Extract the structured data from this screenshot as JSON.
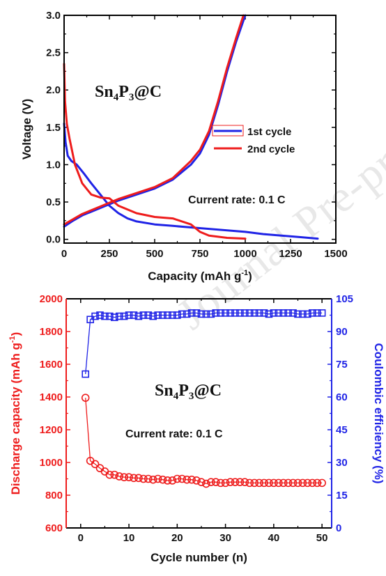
{
  "watermark": "Journal Pre-proof",
  "colors": {
    "red": "#ee1c1c",
    "blue": "#1f23e6",
    "axis": "#000000"
  },
  "chart_data": [
    {
      "type": "line",
      "title": "",
      "xlabel": "Capacity (mAh g",
      "xlabel_sup": "-1",
      "xlabel_end": ")",
      "ylabel": "Voltage (V)",
      "xlim": [
        0,
        1500
      ],
      "ylim": [
        -0.05,
        3.0
      ],
      "xticks": [
        "0",
        "250",
        "500",
        "750",
        "1000",
        "1250",
        "1500"
      ],
      "yticks": [
        "0.0",
        "0.5",
        "1.0",
        "1.5",
        "2.0",
        "2.5",
        "3.0"
      ],
      "material": {
        "main": "Sn",
        "sub1": "4",
        "mid": "P",
        "sub2": "3",
        "end": "@C"
      },
      "annotation": "Current rate: 0.1 C",
      "legend_position": "center-right",
      "series": [
        {
          "name": "1st cycle",
          "role": "discharge",
          "color": "#1f23e6",
          "x": [
            0,
            8,
            20,
            40,
            70,
            110,
            150,
            200,
            250,
            300,
            350,
            400,
            500,
            600,
            700,
            800,
            900,
            1000,
            1100,
            1200,
            1300,
            1400
          ],
          "y": [
            1.55,
            1.3,
            1.12,
            1.05,
            1.0,
            0.88,
            0.75,
            0.6,
            0.45,
            0.35,
            0.28,
            0.24,
            0.2,
            0.18,
            0.16,
            0.14,
            0.12,
            0.1,
            0.07,
            0.05,
            0.03,
            0.01
          ]
        },
        {
          "name": "1st cycle",
          "role": "charge",
          "color": "#1f23e6",
          "x": [
            0,
            50,
            100,
            200,
            300,
            400,
            500,
            600,
            700,
            750,
            800,
            850,
            900,
            950,
            1000
          ],
          "y": [
            0.17,
            0.25,
            0.32,
            0.42,
            0.52,
            0.6,
            0.68,
            0.8,
            1.0,
            1.15,
            1.4,
            1.8,
            2.25,
            2.65,
            3.0
          ]
        },
        {
          "name": "2nd cycle",
          "role": "discharge",
          "color": "#ee1c1c",
          "x": [
            0,
            5,
            15,
            30,
            60,
            100,
            150,
            200,
            250,
            300,
            400,
            500,
            600,
            700,
            750,
            800,
            900,
            1000
          ],
          "y": [
            2.35,
            1.85,
            1.55,
            1.35,
            1.0,
            0.75,
            0.6,
            0.56,
            0.55,
            0.45,
            0.35,
            0.3,
            0.28,
            0.2,
            0.1,
            0.05,
            0.02,
            0.01
          ]
        },
        {
          "name": "2nd cycle",
          "role": "charge",
          "color": "#ee1c1c",
          "x": [
            0,
            50,
            100,
            200,
            300,
            400,
            500,
            600,
            700,
            750,
            800,
            850,
            900,
            950,
            990
          ],
          "y": [
            0.2,
            0.27,
            0.34,
            0.44,
            0.54,
            0.62,
            0.7,
            0.82,
            1.05,
            1.2,
            1.45,
            1.85,
            2.3,
            2.7,
            3.0
          ]
        }
      ]
    },
    {
      "type": "scatter",
      "title": "",
      "xlabel": "Cycle number (n)",
      "ylabel_left": "Discharge capacity (mAh g",
      "ylabel_left_sup": "-1",
      "ylabel_left_end": ")",
      "ylabel_right": "Coulombic efficiency (%)",
      "xlim": [
        -3,
        52
      ],
      "ylim_left": [
        600,
        2000
      ],
      "ylim_right": [
        0,
        105
      ],
      "xticks": [
        "0",
        "10",
        "20",
        "30",
        "40",
        "50"
      ],
      "yticks_left": [
        "600",
        "800",
        "1000",
        "1200",
        "1400",
        "1600",
        "1800",
        "2000"
      ],
      "yticks_right": [
        "0",
        "15",
        "30",
        "45",
        "60",
        "75",
        "90",
        "105"
      ],
      "material": {
        "main": "Sn",
        "sub1": "4",
        "mid": "P",
        "sub2": "3",
        "end": "@C"
      },
      "annotation": "Current rate: 0.1 C",
      "series": [
        {
          "name": "Discharge capacity",
          "axis": "left",
          "marker": "circle",
          "color": "#ee1c1c",
          "x": [
            1,
            2,
            3,
            4,
            5,
            6,
            7,
            8,
            9,
            10,
            11,
            12,
            13,
            14,
            15,
            16,
            17,
            18,
            19,
            20,
            21,
            22,
            23,
            24,
            25,
            26,
            27,
            28,
            29,
            30,
            31,
            32,
            33,
            34,
            35,
            36,
            37,
            38,
            39,
            40,
            41,
            42,
            43,
            44,
            45,
            46,
            47,
            48,
            49,
            50
          ],
          "values": [
            1395,
            1010,
            990,
            965,
            945,
            925,
            925,
            915,
            910,
            910,
            905,
            905,
            900,
            900,
            895,
            900,
            895,
            890,
            890,
            900,
            900,
            895,
            895,
            890,
            880,
            870,
            880,
            880,
            875,
            875,
            880,
            880,
            880,
            880,
            875,
            875,
            875,
            875,
            875,
            875,
            875,
            875,
            875,
            875,
            875,
            875,
            875,
            875,
            875,
            875
          ]
        },
        {
          "name": "Coulombic efficiency",
          "axis": "right",
          "marker": "square",
          "color": "#1f23e6",
          "x": [
            1,
            2,
            3,
            4,
            5,
            6,
            7,
            8,
            9,
            10,
            11,
            12,
            13,
            14,
            15,
            16,
            17,
            18,
            19,
            20,
            21,
            22,
            23,
            24,
            25,
            26,
            27,
            28,
            29,
            30,
            31,
            32,
            33,
            34,
            35,
            36,
            37,
            38,
            39,
            40,
            41,
            42,
            43,
            44,
            45,
            46,
            47,
            48,
            49,
            50
          ],
          "values": [
            70.5,
            95.5,
            97,
            97.5,
            97,
            97,
            96.5,
            97,
            97,
            97.5,
            97.5,
            97,
            97.5,
            97.5,
            97,
            97.5,
            97.5,
            97.5,
            97.5,
            97.5,
            98,
            98,
            98.5,
            98.5,
            98,
            98,
            98,
            98.5,
            98.5,
            98.5,
            98.5,
            98.5,
            98.5,
            98.5,
            98.5,
            98.5,
            98.5,
            98.5,
            98,
            98.5,
            98.5,
            98.5,
            98.5,
            98.5,
            98,
            98,
            98,
            98.5,
            98.5,
            98.5
          ]
        }
      ]
    }
  ]
}
